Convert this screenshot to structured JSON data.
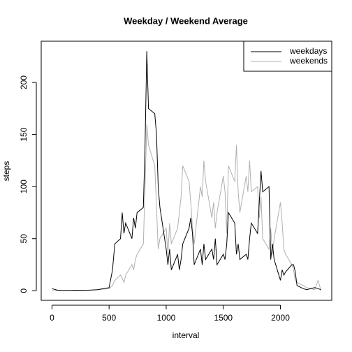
{
  "chart_data": {
    "type": "line",
    "title": "Weekday / Weekend Average",
    "xlabel": "interval",
    "ylabel": "steps",
    "x": [
      0,
      50,
      100,
      200,
      300,
      400,
      500,
      530,
      550,
      600,
      615,
      630,
      645,
      700,
      715,
      730,
      745,
      800,
      815,
      830,
      845,
      900,
      915,
      930,
      945,
      1000,
      1015,
      1030,
      1045,
      1100,
      1115,
      1130,
      1145,
      1200,
      1215,
      1230,
      1245,
      1300,
      1315,
      1330,
      1345,
      1400,
      1415,
      1430,
      1445,
      1500,
      1515,
      1530,
      1545,
      1600,
      1615,
      1630,
      1645,
      1700,
      1715,
      1730,
      1745,
      1800,
      1815,
      1830,
      1845,
      1900,
      1915,
      1930,
      1945,
      2000,
      2015,
      2030,
      2045,
      2100,
      2115,
      2130,
      2145,
      2200,
      2230,
      2300,
      2330,
      2355
    ],
    "series": [
      {
        "name": "weekdays",
        "color": "#000000",
        "values": [
          2,
          0.5,
          0.3,
          0.5,
          0.4,
          1,
          3,
          20,
          45,
          50,
          75,
          55,
          65,
          50,
          70,
          60,
          75,
          80,
          140,
          230,
          175,
          170,
          150,
          100,
          80,
          40,
          25,
          40,
          20,
          35,
          20,
          30,
          45,
          60,
          70,
          55,
          25,
          40,
          25,
          45,
          30,
          40,
          30,
          50,
          25,
          35,
          30,
          45,
          75,
          65,
          35,
          45,
          30,
          35,
          30,
          50,
          65,
          55,
          85,
          115,
          95,
          100,
          30,
          45,
          30,
          10,
          20,
          15,
          18,
          25,
          25,
          18,
          5,
          2,
          1,
          3,
          2,
          1
        ]
      },
      {
        "name": "weekends",
        "color": "#b0b0b0",
        "values": [
          0,
          0.2,
          0,
          0.3,
          0.2,
          1,
          2,
          5,
          10,
          15,
          12,
          8,
          15,
          25,
          20,
          30,
          35,
          45,
          100,
          160,
          140,
          120,
          80,
          40,
          50,
          60,
          35,
          65,
          45,
          60,
          75,
          90,
          120,
          105,
          85,
          60,
          45,
          100,
          90,
          125,
          105,
          70,
          85,
          60,
          75,
          110,
          95,
          55,
          120,
          105,
          140,
          95,
          75,
          110,
          95,
          125,
          95,
          100,
          70,
          90,
          50,
          40,
          60,
          35,
          50,
          85,
          65,
          40,
          35,
          25,
          20,
          10,
          8,
          5,
          3,
          1,
          10,
          0
        ]
      }
    ],
    "xlim": [
      -94.2,
      2449.2
    ],
    "ylim": [
      -9.2,
      239.6
    ],
    "xticks": [
      0,
      500,
      1000,
      1500,
      2000
    ],
    "yticks": [
      0,
      50,
      100,
      150,
      200
    ],
    "legend": "topright"
  }
}
